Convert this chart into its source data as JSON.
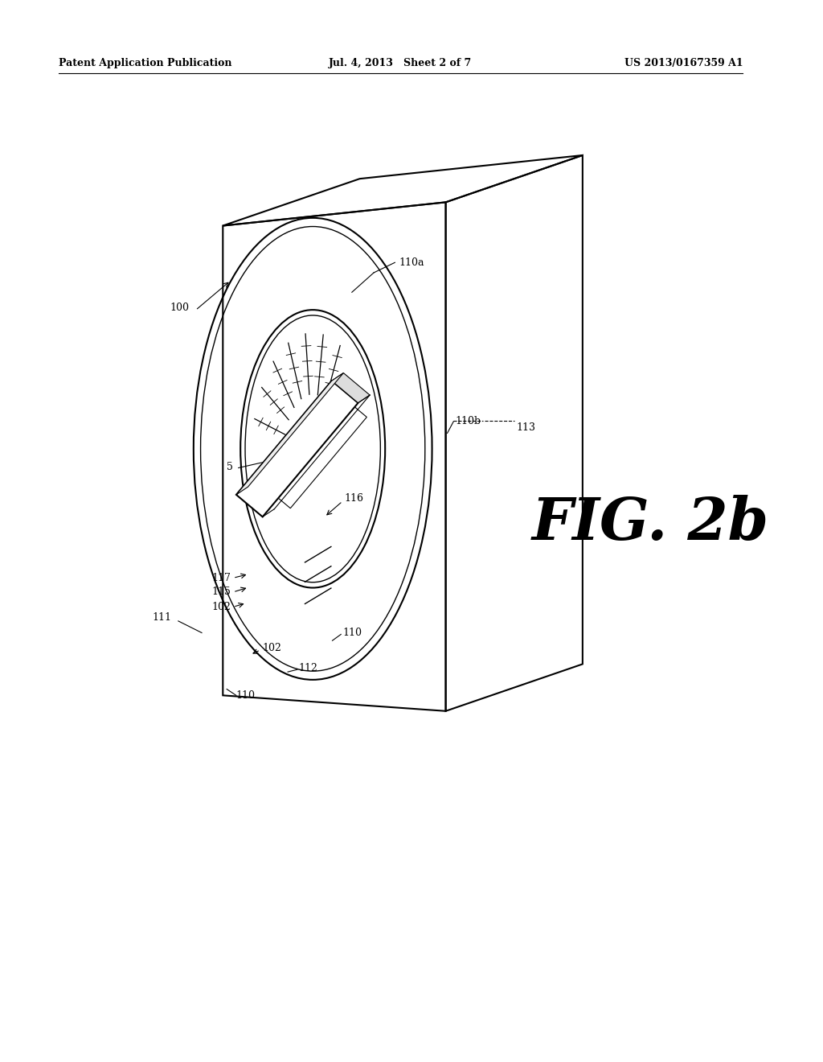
{
  "bg_color": "#ffffff",
  "line_color": "#000000",
  "header_left": "Patent Application Publication",
  "header_mid": "Jul. 4, 2013   Sheet 2 of 7",
  "header_right": "US 2013/0167359 A1",
  "fig_label": "FIG. 2b"
}
